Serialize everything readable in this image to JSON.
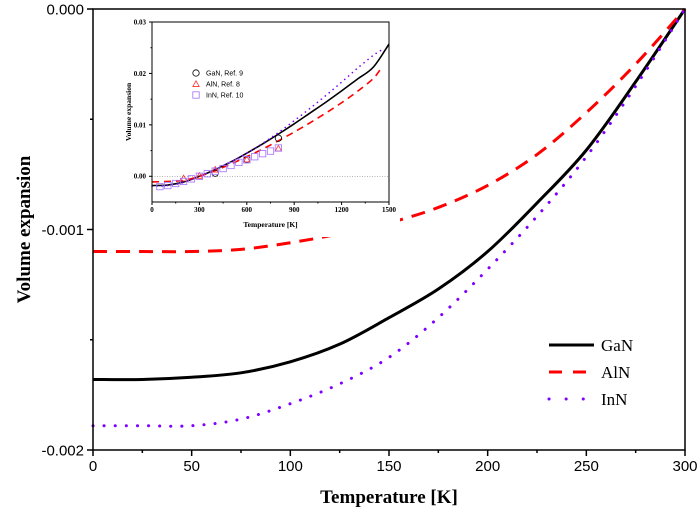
{
  "chart_data": [
    {
      "type": "line",
      "xlabel": "Temperature [K]",
      "ylabel": "Volume expansion",
      "xlim": [
        0,
        300
      ],
      "ylim": [
        -0.002,
        0.0
      ],
      "xticks": [
        "0",
        "50",
        "100",
        "150",
        "200",
        "250",
        "300"
      ],
      "yticks": [
        "-0.002",
        "-0.001",
        "0.000"
      ],
      "grid": false,
      "legend_position": "bottom-right",
      "series": [
        {
          "name": "GaN",
          "color": "#000000",
          "style": "solid",
          "x": [
            0,
            25,
            50,
            75,
            100,
            125,
            150,
            175,
            200,
            225,
            250,
            275,
            300
          ],
          "y": [
            -0.00168,
            -0.00168,
            -0.00167,
            -0.00165,
            -0.0016,
            -0.00152,
            -0.0014,
            -0.00127,
            -0.0011,
            -0.00088,
            -0.00064,
            -0.00033,
            0.0
          ]
        },
        {
          "name": "AlN",
          "color": "#ff0000",
          "style": "dashed",
          "x": [
            0,
            25,
            50,
            75,
            100,
            125,
            150,
            175,
            200,
            225,
            250,
            275,
            300
          ],
          "y": [
            -0.0011,
            -0.0011,
            -0.0011,
            -0.00109,
            -0.00106,
            -0.00102,
            -0.00097,
            -0.0009,
            -0.0008,
            -0.00066,
            -0.00047,
            -0.00025,
            0.0
          ]
        },
        {
          "name": "InN",
          "color": "#7f00ff",
          "style": "dotted",
          "x": [
            0,
            25,
            50,
            75,
            100,
            125,
            150,
            175,
            200,
            225,
            250,
            275,
            300
          ],
          "y": [
            -0.00189,
            -0.00189,
            -0.00189,
            -0.00186,
            -0.00179,
            -0.0017,
            -0.00158,
            -0.0014,
            -0.00118,
            -0.00094,
            -0.00067,
            -0.00035,
            0.0
          ]
        }
      ]
    },
    {
      "type": "line",
      "xlabel": "Temperature [K]",
      "ylabel": "Volume expansion",
      "xlim": [
        0,
        1500
      ],
      "ylim": [
        -0.005,
        0.03
      ],
      "xticks": [
        "0",
        "300",
        "600",
        "900",
        "1200",
        "1500"
      ],
      "yticks": [
        "0.00",
        "0.01",
        "0.02",
        "0.03"
      ],
      "grid": false,
      "zero_line": true,
      "legend_position": "top-left",
      "series": [
        {
          "color": "#000000",
          "style": "solid",
          "x": [
            0,
            100,
            200,
            300,
            400,
            500,
            600,
            700,
            800,
            900,
            1000,
            1100,
            1200,
            1300,
            1400,
            1500
          ],
          "y": [
            -0.0018,
            -0.0017,
            -0.0011,
            0.0,
            0.0013,
            0.0028,
            0.0045,
            0.0063,
            0.0082,
            0.0102,
            0.0123,
            0.0144,
            0.0166,
            0.0189,
            0.0212,
            0.0257
          ]
        },
        {
          "color": "#ff0000",
          "style": "dashed",
          "x": [
            0,
            100,
            200,
            300,
            400,
            500,
            600,
            700,
            800,
            900,
            1000,
            1100,
            1200,
            1300,
            1400,
            1450
          ],
          "y": [
            -0.0011,
            -0.001,
            -0.0008,
            0.0,
            0.0011,
            0.0024,
            0.0038,
            0.0053,
            0.0069,
            0.0086,
            0.0104,
            0.0123,
            0.0143,
            0.0165,
            0.019,
            0.021
          ]
        },
        {
          "color": "#7f00ff",
          "style": "dotted",
          "x": [
            0,
            100,
            200,
            300,
            400,
            500,
            600,
            700,
            800,
            900,
            1000,
            1100,
            1200,
            1300,
            1400,
            1450
          ],
          "y": [
            -0.0019,
            -0.0018,
            -0.0012,
            0.0,
            0.0013,
            0.0028,
            0.0045,
            0.0064,
            0.0085,
            0.0108,
            0.0132,
            0.0157,
            0.0183,
            0.021,
            0.0235,
            0.0245
          ]
        },
        {
          "name": "GaN, Ref. 9",
          "color": "#000000",
          "marker": "circle",
          "x": [
            400,
            600,
            800
          ],
          "y": [
            0.0006,
            0.0033,
            0.0074
          ]
        },
        {
          "name": "AlN, Ref. 8",
          "color": "#ff3030",
          "marker": "triangle",
          "x": [
            200,
            300,
            400,
            600,
            800
          ],
          "y": [
            -0.0004,
            0.0001,
            0.0013,
            0.0033,
            0.0054
          ]
        },
        {
          "name": "InN, Ref. 10",
          "color": "#a070ff",
          "marker": "square",
          "x": [
            50,
            100,
            150,
            200,
            250,
            300,
            350,
            400,
            450,
            500,
            550,
            600,
            650,
            700,
            750,
            800
          ],
          "y": [
            -0.002,
            -0.0018,
            -0.0014,
            -0.001,
            -0.0005,
            0.0,
            0.0005,
            0.001,
            0.0015,
            0.0021,
            0.0027,
            0.0032,
            0.0038,
            0.0044,
            0.0049,
            0.0055
          ]
        }
      ]
    }
  ]
}
